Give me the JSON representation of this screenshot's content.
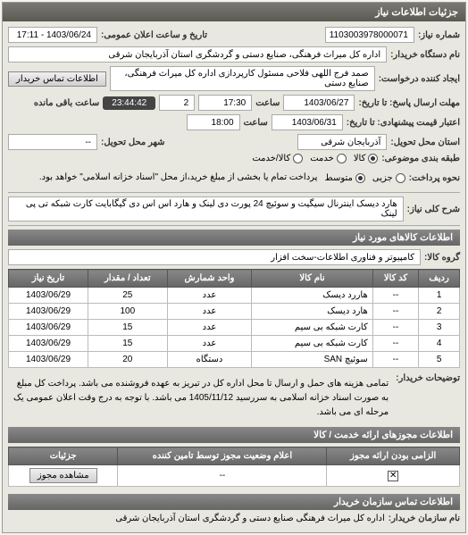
{
  "colors": {
    "header_grad_top": "#7a7a72",
    "header_grad_bottom": "#5a5a52",
    "sub_grad_top": "#888888",
    "sub_grad_bottom": "#666666",
    "panel_bg": "#e8e8e0",
    "border": "#999999"
  },
  "main_header": "جزئیات اطلاعات نیاز",
  "info": {
    "req_no_label": "شماره نیاز:",
    "req_no": "1103003978000071",
    "ann_dt_label": "تاریخ و ساعت اعلان عمومی:",
    "ann_dt": "1403/06/24 - 17:11",
    "buyer_label": "نام دستگاه خریدار:",
    "buyer": "اداره کل میراث فرهنگی، صنایع دستی و گردشگری استان آذربایجان شرقی",
    "requester_label": "ایجاد کننده درخواست:",
    "requester": "صمد فرج اللهی فلاحی مسئول کارپردازی اداره کل میراث فرهنگی، صنایع دستی",
    "contact_btn": "اطلاعات تماس خریدار",
    "deadline_label": "مهلت ارسال پاسخ: تا تاریخ:",
    "deadline_date": "1403/06/27",
    "time_label": "ساعت",
    "deadline_time": "17:30",
    "days_left": "2",
    "countdown": "23:44:42",
    "remain_text": "ساعت باقی مانده",
    "valid_label": "اعتبار قیمت پیشنهادی: تا تاریخ:",
    "valid_date": "1403/06/31",
    "valid_time": "18:00",
    "province_label": "استان محل تحویل:",
    "province": "آذربایجان شرقی",
    "city_label": "شهر محل تحویل:",
    "city": "--",
    "budget_label": "طبقه بندی موضوعی:",
    "budget_opts": [
      "کالا",
      "خدمت",
      "کالا/خدمت"
    ],
    "budget_sel": 0,
    "pay_label": "نحوه پرداخت:",
    "pay_opts": [
      "جزیی",
      "متوسط"
    ],
    "pay_sel": 1,
    "pay_note": "پرداخت تمام یا بخشی از مبلغ خرید،از محل \"اسناد خزانه اسلامی\" خواهد بود."
  },
  "title_section": {
    "label": "شرح کلی نیاز:",
    "text": "هارد دیسک اینترنال سیگیت و سوئیچ 24 پورت دی لینک و هارد اس اس دی گیگابایت کارت شبکه تی پی لینک"
  },
  "goods": {
    "header": "اطلاعات کالاهای مورد نیاز",
    "group_label": "گروه کالا:",
    "group": "کامپیوتر و فناوری اطلاعات-سخت افزار",
    "cols": [
      "ردیف",
      "کد کالا",
      "نام کالا",
      "واحد شمارش",
      "تعداد / مقدار",
      "تاریخ نیاز"
    ],
    "rows": [
      [
        "1",
        "--",
        "هاررد دیسک",
        "عدد",
        "25",
        "1403/06/29"
      ],
      [
        "2",
        "--",
        "هارد دیسک",
        "عدد",
        "100",
        "1403/06/29"
      ],
      [
        "3",
        "--",
        "کارت شبکه بی سیم",
        "عدد",
        "15",
        "1403/06/29"
      ],
      [
        "4",
        "--",
        "کارت شبکه بی سیم",
        "عدد",
        "15",
        "1403/06/29"
      ],
      [
        "5",
        "--",
        "سوئیچ SAN",
        "دستگاه",
        "20",
        "1403/06/29"
      ]
    ]
  },
  "buyer_note": {
    "label": "توضیحات خریدار:",
    "text": "تمامی هزینه های حمل و ارسال تا محل اداره کل در تبریز به عهده فروشنده می باشد. پرداخت کل مبلغ به صورت اسناد خزانه اسلامی به سررسید 1405/11/12 می باشد. با توجه به درج وقت اعلان عمومی یک مرحله ای می باشد."
  },
  "licenses": {
    "header": "اطلاعات مجوزهای ارائه خدمت / کالا",
    "cols": [
      "الزامی بودن ارائه مجوز",
      "اعلام وضعیت مجوز توسط تامین کننده",
      "جزئیات"
    ],
    "row": {
      "mandatory_checked": true,
      "status": "--",
      "btn": "مشاهده مجوز"
    }
  },
  "contact": {
    "header": "اطلاعات تماس سازمان خریدار",
    "label": "نام سازمان خریدار:",
    "value": "اداره کل میراث فرهنگی صنایع دستی و گردشگری استان آذربایجان شرقی"
  }
}
